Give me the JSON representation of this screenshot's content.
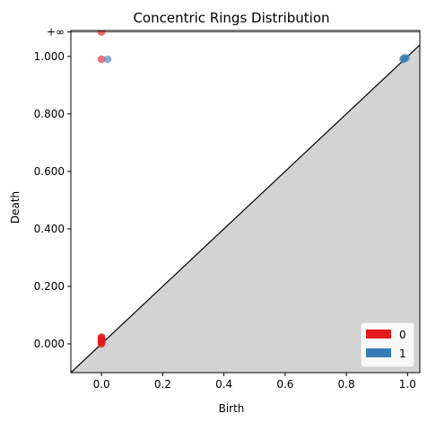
{
  "chart_data": {
    "type": "scatter",
    "title": "Concentric Rings Distribution",
    "xlabel": "Birth",
    "ylabel": "Death",
    "xlim": [
      -0.1,
      1.04
    ],
    "ylim": [
      -0.1,
      1.09
    ],
    "x_ticks": [
      {
        "value": 0.0,
        "label": "0.0"
      },
      {
        "value": 0.2,
        "label": "0.2"
      },
      {
        "value": 0.4,
        "label": "0.4"
      },
      {
        "value": 0.6,
        "label": "0.6"
      },
      {
        "value": 0.8,
        "label": "0.8"
      },
      {
        "value": 1.0,
        "label": "1.0"
      }
    ],
    "y_ticks": [
      {
        "value": 0.0,
        "label": "0.000"
      },
      {
        "value": 0.2,
        "label": "0.200"
      },
      {
        "value": 0.4,
        "label": "0.400"
      },
      {
        "value": 0.6,
        "label": "0.600"
      },
      {
        "value": 0.8,
        "label": "0.800"
      },
      {
        "value": 1.0,
        "label": "1.000"
      }
    ],
    "infinity": {
      "value": 1.085,
      "label": "+∞"
    },
    "diagonal": true,
    "grid": false,
    "legend_position": "bottom-right",
    "series": [
      {
        "name": "0",
        "color": "#e41a1c",
        "points": [
          [
            0.0,
            1.085
          ],
          [
            0.0,
            0.99
          ],
          [
            0.0,
            0.0
          ],
          [
            0.0,
            0.003
          ],
          [
            0.0,
            0.006
          ],
          [
            0.0,
            0.009
          ],
          [
            0.0,
            0.012
          ],
          [
            0.0,
            0.015
          ],
          [
            0.0,
            0.018
          ],
          [
            0.0,
            0.021
          ],
          [
            0.0,
            0.024
          ]
        ]
      },
      {
        "name": "1",
        "color": "#377eb8",
        "points": [
          [
            0.02,
            0.99
          ],
          [
            0.985,
            0.99
          ],
          [
            0.99,
            0.992
          ],
          [
            0.995,
            0.995
          ],
          [
            0.988,
            0.994
          ]
        ]
      }
    ]
  }
}
